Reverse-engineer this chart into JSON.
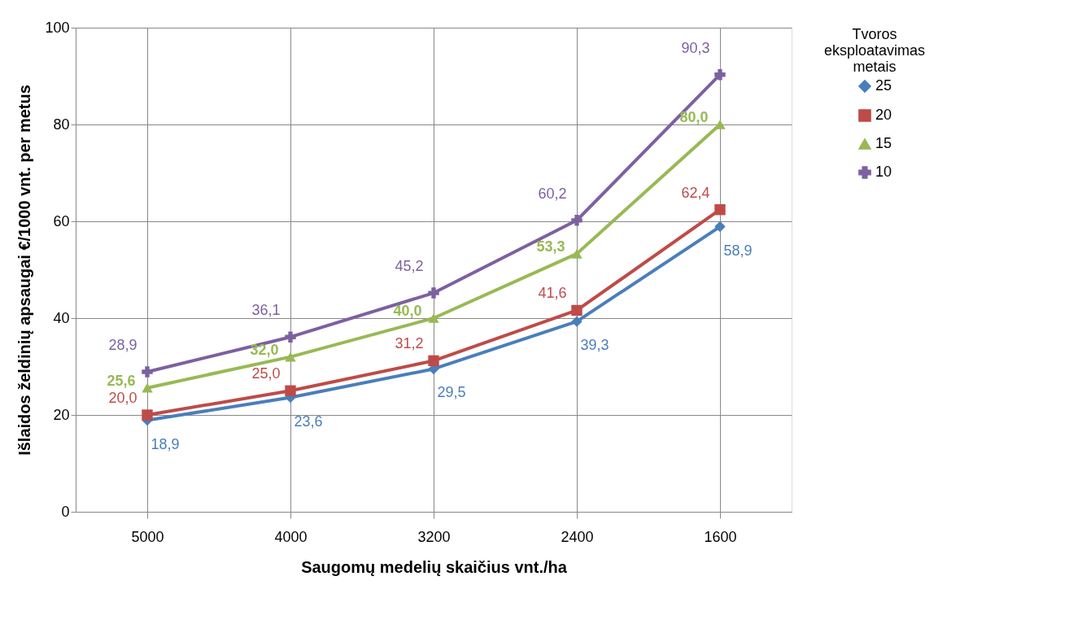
{
  "chart_data": {
    "type": "line",
    "xlabel": "Saugomų medelių skaičius vnt./ha",
    "ylabel": "Išlaidos želdinių apsaugai €/1000 vnt. per metus",
    "legend_title": "Tvoros eksploatavimas metais",
    "categories": [
      "5000",
      "4000",
      "3200",
      "2400",
      "1600"
    ],
    "series": [
      {
        "name": "25",
        "color": "#4a7ebb",
        "marker": "diamond",
        "values": [
          18.9,
          23.6,
          29.5,
          39.3,
          58.9
        ],
        "value_labels": [
          "18,9",
          "23,6",
          "29,5",
          "39,3",
          "58,9"
        ]
      },
      {
        "name": "20",
        "color": "#be4b48",
        "marker": "square",
        "values": [
          20.0,
          25.0,
          31.2,
          41.6,
          62.4
        ],
        "value_labels": [
          "20,0",
          "25,0",
          "31,2",
          "41,6",
          "62,4"
        ]
      },
      {
        "name": "15",
        "color": "#98b954",
        "marker": "triangle",
        "values": [
          25.6,
          32.0,
          40.0,
          53.3,
          80.0
        ],
        "value_labels": [
          "25,6",
          "32,0",
          "40,0",
          "53,3",
          "80,0"
        ]
      },
      {
        "name": "10",
        "color": "#7d60a0",
        "marker": "cross",
        "values": [
          28.9,
          36.1,
          45.2,
          60.2,
          90.3
        ],
        "value_labels": [
          "28,9",
          "36,1",
          "45,2",
          "60,2",
          "90,3"
        ]
      }
    ],
    "ylim": [
      0,
      100
    ],
    "yticks": [
      0,
      20,
      40,
      60,
      80,
      100
    ],
    "grid": true,
    "legend": "right",
    "line_style": "solid"
  }
}
